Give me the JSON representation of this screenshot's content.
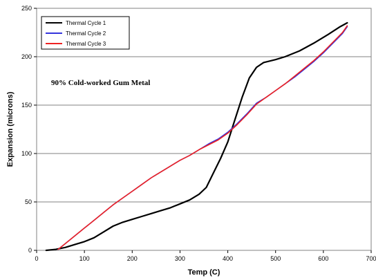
{
  "chart_data": {
    "type": "line",
    "title": "",
    "xlabel": "Temp (C)",
    "ylabel": "Expansion (microns)",
    "xlim": [
      0,
      700
    ],
    "ylim": [
      0,
      250
    ],
    "xticks": [
      0,
      100,
      200,
      300,
      400,
      500,
      600,
      700
    ],
    "yticks": [
      0,
      50,
      100,
      150,
      200,
      250
    ],
    "grid": "horizontal",
    "legend_position": "top-left",
    "annotation": "90% Cold-worked Gum Metal",
    "series": [
      {
        "name": "Thermal Cycle 1",
        "color": "#000000",
        "points": [
          [
            20,
            0
          ],
          [
            40,
            1
          ],
          [
            60,
            3
          ],
          [
            80,
            6
          ],
          [
            100,
            9
          ],
          [
            120,
            13
          ],
          [
            140,
            19
          ],
          [
            160,
            25
          ],
          [
            180,
            29
          ],
          [
            200,
            32
          ],
          [
            220,
            35
          ],
          [
            240,
            38
          ],
          [
            260,
            41
          ],
          [
            280,
            44
          ],
          [
            300,
            48
          ],
          [
            320,
            52
          ],
          [
            340,
            58
          ],
          [
            355,
            65
          ],
          [
            370,
            80
          ],
          [
            385,
            95
          ],
          [
            400,
            112
          ],
          [
            415,
            135
          ],
          [
            430,
            158
          ],
          [
            445,
            178
          ],
          [
            460,
            189
          ],
          [
            475,
            194
          ],
          [
            500,
            197
          ],
          [
            520,
            200
          ],
          [
            550,
            206
          ],
          [
            580,
            214
          ],
          [
            610,
            223
          ],
          [
            635,
            231
          ],
          [
            650,
            235
          ]
        ]
      },
      {
        "name": "Thermal Cycle 2",
        "color": "#3333dd",
        "points": [
          [
            45,
            1
          ],
          [
            60,
            7
          ],
          [
            80,
            15
          ],
          [
            100,
            23
          ],
          [
            120,
            31
          ],
          [
            140,
            39
          ],
          [
            160,
            47
          ],
          [
            180,
            54
          ],
          [
            200,
            61
          ],
          [
            220,
            68
          ],
          [
            240,
            75
          ],
          [
            260,
            81
          ],
          [
            280,
            87
          ],
          [
            300,
            93
          ],
          [
            320,
            98
          ],
          [
            340,
            104
          ],
          [
            360,
            110
          ],
          [
            380,
            115
          ],
          [
            400,
            122
          ],
          [
            420,
            131
          ],
          [
            440,
            141
          ],
          [
            460,
            152
          ],
          [
            480,
            158
          ],
          [
            500,
            165
          ],
          [
            520,
            172
          ],
          [
            540,
            179
          ],
          [
            560,
            187
          ],
          [
            580,
            195
          ],
          [
            600,
            204
          ],
          [
            620,
            214
          ],
          [
            640,
            224
          ],
          [
            650,
            231
          ]
        ]
      },
      {
        "name": "Thermal Cycle 3",
        "color": "#ee2222",
        "points": [
          [
            45,
            1
          ],
          [
            60,
            7
          ],
          [
            80,
            15
          ],
          [
            100,
            23
          ],
          [
            120,
            31
          ],
          [
            140,
            39
          ],
          [
            160,
            47
          ],
          [
            180,
            54
          ],
          [
            200,
            61
          ],
          [
            220,
            68
          ],
          [
            240,
            75
          ],
          [
            260,
            81
          ],
          [
            280,
            87
          ],
          [
            300,
            93
          ],
          [
            320,
            98
          ],
          [
            340,
            104
          ],
          [
            360,
            109
          ],
          [
            380,
            114
          ],
          [
            400,
            121
          ],
          [
            420,
            130
          ],
          [
            440,
            140
          ],
          [
            460,
            151
          ],
          [
            480,
            158
          ],
          [
            500,
            165
          ],
          [
            520,
            172
          ],
          [
            540,
            180
          ],
          [
            560,
            188
          ],
          [
            580,
            196
          ],
          [
            600,
            205
          ],
          [
            620,
            215
          ],
          [
            640,
            225
          ],
          [
            650,
            232
          ]
        ]
      }
    ]
  }
}
